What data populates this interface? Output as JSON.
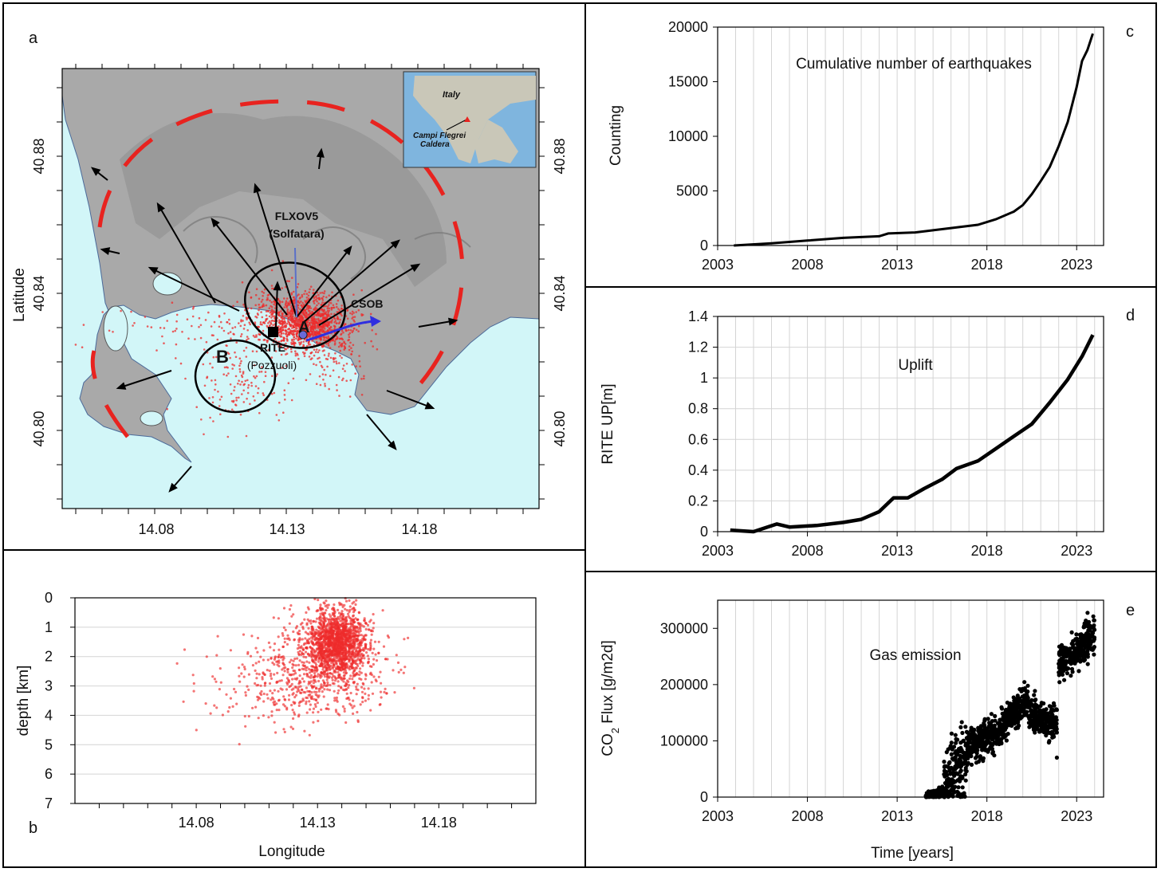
{
  "panel_letters": {
    "a": "a",
    "b": "b",
    "c": "c",
    "d": "d",
    "e": "e"
  },
  "map": {
    "ylabel": "Latitude",
    "lat_ticks": [
      "40.88",
      "40.84",
      "40.80"
    ],
    "lon_ticks": [
      "14.08",
      "14.13",
      "14.18"
    ],
    "label_flxov5": "FLXOV5",
    "label_solfatara": "(Solfatara)",
    "label_csob": "CSOB",
    "label_rite": "RITE",
    "label_pozzuoli": "(Pozzuoli)",
    "label_A": "A",
    "label_B": "B",
    "inset_italy": "Italy",
    "inset_campi": "Campi Flegrei",
    "inset_caldera": "Caldera",
    "colors": {
      "sea": "#d2f6f8",
      "land": "#a9a9a9",
      "rim": "#e8231f",
      "seismic": "#ee2b2b",
      "arrow": "#000000",
      "gnss": "#2f2fe0"
    }
  },
  "chart_data": [
    {
      "id": "b",
      "type": "scatter",
      "xlabel": "Longitude",
      "ylabel": "depth [km]",
      "xlim": [
        14.03,
        14.22
      ],
      "ylim": [
        7,
        0
      ],
      "x_ticks": [
        "14.08",
        "14.13",
        "14.18"
      ],
      "y_ticks": [
        "0",
        "1",
        "2",
        "3",
        "4",
        "5",
        "6",
        "7"
      ],
      "grid": "horizontal",
      "color": "#ee2b2b",
      "clusters": [
        {
          "lon": 14.138,
          "depth": 1.5,
          "spread_lon": 0.006,
          "spread_depth": 0.55,
          "count": 1400
        },
        {
          "lon": 14.132,
          "depth": 2.3,
          "spread_lon": 0.013,
          "spread_depth": 0.8,
          "count": 500
        },
        {
          "lon": 14.118,
          "depth": 3.0,
          "spread_lon": 0.018,
          "spread_depth": 0.7,
          "count": 250
        }
      ]
    },
    {
      "id": "c",
      "type": "line",
      "title": "Cumulative number of earthquakes",
      "xlabel": "",
      "ylabel": "Counting",
      "xlim": [
        2003,
        2024.5
      ],
      "ylim": [
        0,
        20000
      ],
      "x_ticks": [
        "2003",
        "2008",
        "2013",
        "2018",
        "2023"
      ],
      "y_ticks": [
        "0",
        "5000",
        "10000",
        "15000",
        "20000"
      ],
      "color": "#000000",
      "x": [
        2003.9,
        2006,
        2008,
        2010,
        2012,
        2012.5,
        2014,
        2016,
        2017.5,
        2018.5,
        2019.5,
        2020,
        2020.5,
        2021,
        2021.5,
        2022,
        2022.5,
        2023,
        2023.3,
        2023.6,
        2023.9
      ],
      "y": [
        0,
        200,
        450,
        700,
        850,
        1100,
        1200,
        1600,
        1900,
        2400,
        3100,
        3700,
        4700,
        5900,
        7200,
        9100,
        11300,
        14500,
        16900,
        17900,
        19400
      ]
    },
    {
      "id": "d",
      "type": "line",
      "title": "Uplift",
      "xlabel": "",
      "ylabel": "RITE UP[m]",
      "xlim": [
        2003,
        2024.5
      ],
      "ylim": [
        0,
        1.4
      ],
      "x_ticks": [
        "2003",
        "2008",
        "2013",
        "2018",
        "2023"
      ],
      "y_ticks": [
        "0",
        "0.2",
        "0.4",
        "0.6",
        "0.8",
        "1",
        "1.2",
        "1.4"
      ],
      "color": "#000000",
      "x": [
        2003.7,
        2005,
        2006.3,
        2007,
        2008.5,
        2010,
        2011,
        2012,
        2012.8,
        2013.6,
        2014.5,
        2015.5,
        2016.3,
        2017.5,
        2018.5,
        2019.5,
        2020.5,
        2021.5,
        2022.5,
        2023.3,
        2023.9
      ],
      "y": [
        0.01,
        0.0,
        0.05,
        0.03,
        0.04,
        0.06,
        0.08,
        0.13,
        0.22,
        0.22,
        0.28,
        0.34,
        0.41,
        0.46,
        0.54,
        0.62,
        0.7,
        0.84,
        0.99,
        1.14,
        1.28
      ]
    },
    {
      "id": "e",
      "type": "scatter",
      "title": "Gas emission",
      "xlabel": "Time [years]",
      "ylabel": "CO2 Flux [g/m2d]",
      "xlim": [
        2003,
        2024.5
      ],
      "ylim": [
        0,
        350000
      ],
      "x_ticks": [
        "2003",
        "2008",
        "2013",
        "2018",
        "2023"
      ],
      "y_ticks": [
        "0",
        "100000",
        "200000",
        "300000"
      ],
      "color": "#000000",
      "segments": [
        {
          "x0": 2014.6,
          "x1": 2015.6,
          "y0": 0,
          "y1": 10000,
          "spread": 4000
        },
        {
          "x0": 2015.6,
          "x1": 2016.9,
          "y0": 20000,
          "y1": 60000,
          "spread": 35000
        },
        {
          "x0": 2016.9,
          "x1": 2018.9,
          "y0": 90000,
          "y1": 120000,
          "spread": 15000
        },
        {
          "x0": 2018.9,
          "x1": 2020.3,
          "y0": 130000,
          "y1": 175000,
          "spread": 15000
        },
        {
          "x0": 2020.3,
          "x1": 2021.9,
          "y0": 150000,
          "y1": 125000,
          "spread": 15000
        },
        {
          "x0": 2022.0,
          "x1": 2023.2,
          "y0": 240000,
          "y1": 260000,
          "spread": 15000
        },
        {
          "x0": 2023.2,
          "x1": 2024.0,
          "y0": 265000,
          "y1": 290000,
          "spread": 20000
        }
      ]
    }
  ]
}
